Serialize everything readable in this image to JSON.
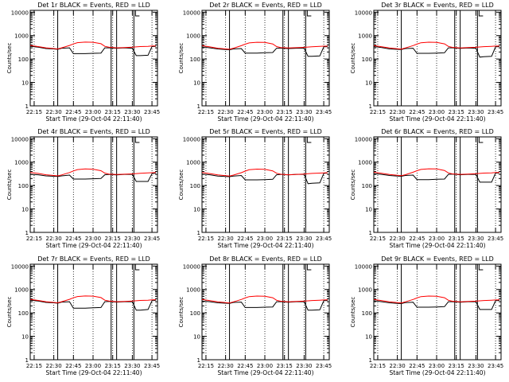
{
  "chart_data": [
    {
      "type": "line",
      "title": "Det 1r BLACK = Events, RED = LLD",
      "xlabel": "Start Time (29-Oct-04 22:11:40)",
      "ylabel": "Counts/sec",
      "ylog": true,
      "ylim": [
        1,
        12000
      ],
      "xlim": [
        22.2,
        23.82
      ],
      "x_ticks": [
        "22:15",
        "22:30",
        "22:45",
        "23:00",
        "23:15",
        "23:30",
        "23:45"
      ],
      "y_ticks": [
        "1",
        "10",
        "100",
        "1000",
        "10000"
      ],
      "legend": "none",
      "grid": false,
      "colors": {
        "events": "#000000",
        "lld": "#ff0000"
      }
    },
    {
      "type": "line",
      "title": "Det 2r BLACK = Events, RED = LLD",
      "xlabel": "Start Time (29-Oct-04 22:11:40)",
      "ylabel": "Counts/sec",
      "ylog": true,
      "ylim": [
        1,
        12000
      ],
      "xlim": [
        22.2,
        23.82
      ],
      "x_ticks": [
        "22:15",
        "22:30",
        "22:45",
        "23:00",
        "23:15",
        "23:30",
        "23:45"
      ],
      "y_ticks": [
        "1",
        "10",
        "100",
        "1000",
        "10000"
      ],
      "legend": "none",
      "grid": false,
      "colors": {
        "events": "#000000",
        "lld": "#ff0000"
      }
    },
    {
      "type": "line",
      "title": "Det 3r BLACK = Events, RED = LLD",
      "xlabel": "Start Time (29-Oct-04 22:11:40)",
      "ylabel": "Counts/sec",
      "ylog": true,
      "ylim": [
        1,
        12000
      ],
      "xlim": [
        22.2,
        23.82
      ],
      "x_ticks": [
        "22:15",
        "22:30",
        "22:45",
        "23:00",
        "23:15",
        "23:30",
        "23:45"
      ],
      "y_ticks": [
        "1",
        "10",
        "100",
        "1000",
        "10000"
      ],
      "legend": "none",
      "grid": false,
      "colors": {
        "events": "#000000",
        "lld": "#ff0000"
      }
    },
    {
      "type": "line",
      "title": "Det 4r BLACK = Events, RED = LLD",
      "xlabel": "Start Time (29-Oct-04 22:11:40)",
      "ylabel": "Counts/sec",
      "ylog": true,
      "ylim": [
        1,
        12000
      ],
      "xlim": [
        22.2,
        23.82
      ],
      "x_ticks": [
        "22:15",
        "22:30",
        "22:45",
        "23:00",
        "23:15",
        "23:30",
        "23:45"
      ],
      "y_ticks": [
        "1",
        "10",
        "100",
        "1000",
        "10000"
      ],
      "legend": "none",
      "grid": false,
      "colors": {
        "events": "#000000",
        "lld": "#ff0000"
      }
    },
    {
      "type": "line",
      "title": "Det 5r BLACK = Events, RED = LLD",
      "xlabel": "Start Time (29-Oct-04 22:11:40)",
      "ylabel": "Counts/sec",
      "ylog": true,
      "ylim": [
        1,
        12000
      ],
      "xlim": [
        22.2,
        23.82
      ],
      "x_ticks": [
        "22:15",
        "22:30",
        "22:45",
        "23:00",
        "23:15",
        "23:30",
        "23:45"
      ],
      "y_ticks": [
        "1",
        "10",
        "100",
        "1000",
        "10000"
      ],
      "legend": "none",
      "grid": false,
      "colors": {
        "events": "#000000",
        "lld": "#ff0000"
      }
    },
    {
      "type": "line",
      "title": "Det 6r BLACK = Events, RED = LLD",
      "xlabel": "Start Time (29-Oct-04 22:11:40)",
      "ylabel": "Counts/sec",
      "ylog": true,
      "ylim": [
        1,
        12000
      ],
      "xlim": [
        22.2,
        23.82
      ],
      "x_ticks": [
        "22:15",
        "22:30",
        "22:45",
        "23:00",
        "23:15",
        "23:30",
        "23:45"
      ],
      "y_ticks": [
        "1",
        "10",
        "100",
        "1000",
        "10000"
      ],
      "legend": "none",
      "grid": false,
      "colors": {
        "events": "#000000",
        "lld": "#ff0000"
      }
    },
    {
      "type": "line",
      "title": "Det 7r BLACK = Events, RED = LLD",
      "xlabel": "Start Time (29-Oct-04 22:11:40)",
      "ylabel": "Counts/sec",
      "ylog": true,
      "ylim": [
        1,
        12000
      ],
      "xlim": [
        22.2,
        23.82
      ],
      "x_ticks": [
        "22:15",
        "22:30",
        "22:45",
        "23:00",
        "23:15",
        "23:30",
        "23:45"
      ],
      "y_ticks": [
        "1",
        "10",
        "100",
        "1000",
        "10000"
      ],
      "legend": "none",
      "grid": false,
      "colors": {
        "events": "#000000",
        "lld": "#ff0000"
      }
    },
    {
      "type": "line",
      "title": "Det 8r BLACK = Events, RED = LLD",
      "xlabel": "Start Time (29-Oct-04 22:11:40)",
      "ylabel": "Counts/sec",
      "ylog": true,
      "ylim": [
        1,
        12000
      ],
      "xlim": [
        22.2,
        23.82
      ],
      "x_ticks": [
        "22:15",
        "22:30",
        "22:45",
        "23:00",
        "23:15",
        "23:30",
        "23:45"
      ],
      "y_ticks": [
        "1",
        "10",
        "100",
        "1000",
        "10000"
      ],
      "legend": "none",
      "grid": false,
      "colors": {
        "events": "#000000",
        "lld": "#ff0000"
      }
    },
    {
      "type": "line",
      "title": "Det 9r BLACK = Events, RED = LLD",
      "xlabel": "Start Time (29-Oct-04 22:11:40)",
      "ylabel": "Counts/sec",
      "ylog": true,
      "ylim": [
        1,
        12000
      ],
      "xlim": [
        22.2,
        23.82
      ],
      "x_ticks": [
        "22:15",
        "22:30",
        "22:45",
        "23:00",
        "23:15",
        "23:30",
        "23:45"
      ],
      "y_ticks": [
        "1",
        "10",
        "100",
        "1000",
        "10000"
      ],
      "legend": "none",
      "grid": false,
      "colors": {
        "events": "#000000",
        "lld": "#ff0000"
      }
    }
  ],
  "series_data": {
    "x": [
      22.2,
      22.3,
      22.4,
      22.5,
      22.55,
      22.6,
      22.7,
      22.75,
      22.8,
      22.9,
      23.0,
      23.1,
      23.15,
      23.2,
      23.3,
      23.4,
      23.5,
      23.55,
      23.6,
      23.7,
      23.75,
      23.8
    ],
    "events": [
      [
        350,
        320,
        280,
        270,
        260,
        290,
        300,
        170,
        170,
        170,
        175,
        180,
        300,
        300,
        290,
        300,
        290,
        140,
        140,
        145,
        340,
        350
      ],
      [
        330,
        300,
        270,
        255,
        250,
        270,
        280,
        180,
        180,
        180,
        185,
        190,
        290,
        290,
        280,
        290,
        290,
        130,
        130,
        135,
        330,
        340
      ],
      [
        340,
        310,
        270,
        260,
        255,
        280,
        290,
        175,
        175,
        175,
        180,
        185,
        300,
        300,
        285,
        295,
        290,
        120,
        125,
        130,
        330,
        340
      ],
      [
        300,
        290,
        260,
        250,
        245,
        260,
        280,
        190,
        190,
        190,
        195,
        200,
        290,
        300,
        285,
        300,
        300,
        150,
        150,
        150,
        320,
        340
      ],
      [
        310,
        290,
        255,
        245,
        240,
        255,
        270,
        175,
        175,
        175,
        180,
        185,
        290,
        300,
        285,
        300,
        300,
        120,
        125,
        130,
        330,
        350
      ],
      [
        320,
        300,
        270,
        255,
        250,
        270,
        280,
        180,
        180,
        180,
        185,
        190,
        300,
        310,
        290,
        300,
        300,
        140,
        140,
        140,
        340,
        350
      ],
      [
        350,
        320,
        280,
        270,
        260,
        290,
        300,
        160,
        160,
        160,
        165,
        170,
        300,
        310,
        290,
        300,
        300,
        130,
        130,
        140,
        330,
        350
      ],
      [
        320,
        300,
        270,
        260,
        255,
        280,
        290,
        170,
        170,
        170,
        175,
        180,
        300,
        300,
        285,
        300,
        300,
        130,
        130,
        135,
        330,
        340
      ],
      [
        330,
        300,
        270,
        255,
        250,
        275,
        285,
        175,
        175,
        175,
        180,
        185,
        300,
        300,
        285,
        300,
        300,
        140,
        140,
        140,
        330,
        340
      ]
    ],
    "lld": [
      [
        380,
        340,
        300,
        280,
        270,
        300,
        380,
        440,
        500,
        530,
        520,
        450,
        350,
        320,
        300,
        310,
        320,
        330,
        340,
        350,
        360,
        360
      ],
      [
        370,
        330,
        290,
        270,
        262,
        290,
        370,
        430,
        490,
        520,
        510,
        440,
        340,
        310,
        295,
        305,
        315,
        325,
        335,
        345,
        355,
        355
      ],
      [
        375,
        335,
        295,
        275,
        265,
        295,
        375,
        435,
        495,
        525,
        515,
        445,
        345,
        315,
        298,
        308,
        318,
        328,
        338,
        348,
        358,
        358
      ],
      [
        360,
        330,
        290,
        270,
        260,
        285,
        360,
        420,
        480,
        510,
        500,
        430,
        340,
        310,
        295,
        305,
        315,
        325,
        335,
        345,
        355,
        360
      ],
      [
        360,
        325,
        285,
        265,
        255,
        280,
        355,
        415,
        475,
        505,
        495,
        425,
        335,
        305,
        290,
        300,
        310,
        320,
        330,
        340,
        350,
        355
      ],
      [
        370,
        335,
        295,
        275,
        265,
        290,
        370,
        430,
        490,
        520,
        510,
        440,
        345,
        315,
        300,
        310,
        320,
        330,
        340,
        350,
        360,
        360
      ],
      [
        380,
        340,
        300,
        280,
        270,
        300,
        380,
        440,
        500,
        530,
        520,
        450,
        350,
        320,
        300,
        310,
        320,
        330,
        340,
        350,
        360,
        365
      ],
      [
        375,
        335,
        295,
        275,
        265,
        295,
        375,
        435,
        495,
        525,
        515,
        445,
        345,
        315,
        298,
        308,
        318,
        328,
        338,
        348,
        358,
        360
      ],
      [
        375,
        335,
        295,
        275,
        265,
        295,
        375,
        435,
        495,
        525,
        515,
        445,
        345,
        315,
        298,
        308,
        318,
        328,
        338,
        348,
        358,
        360
      ]
    ],
    "vertical_markers": [
      22.55,
      23.23,
      23.3,
      23.52
    ]
  }
}
